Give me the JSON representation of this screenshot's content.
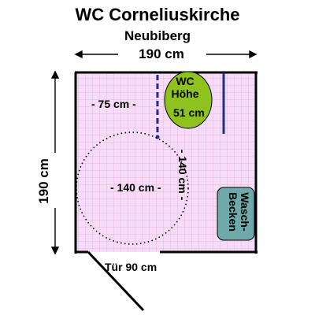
{
  "title": "WC Corneliuskirche",
  "subtitle": "Neubiberg",
  "dimensions": {
    "width": "190 cm",
    "depth": "190 cm",
    "door": "Tür 90 cm"
  },
  "interior": {
    "distance_label": "- 75 cm -",
    "turning_circle_horizontal": "- 140 cm -",
    "turning_circle_vertical": "- 140 cm -"
  },
  "toilet": {
    "line1": "WC",
    "line2": "Höhe",
    "line3": "51 cm"
  },
  "sink": {
    "line1": "Wasch-",
    "line2": "Becken"
  },
  "colors": {
    "floor": "#f7dcf7",
    "grid": "#e7b9e7",
    "toilet": "#8dc21f",
    "sink": "#6fa9a9",
    "handrail": "#1f2f8a",
    "walls": "#000000"
  }
}
